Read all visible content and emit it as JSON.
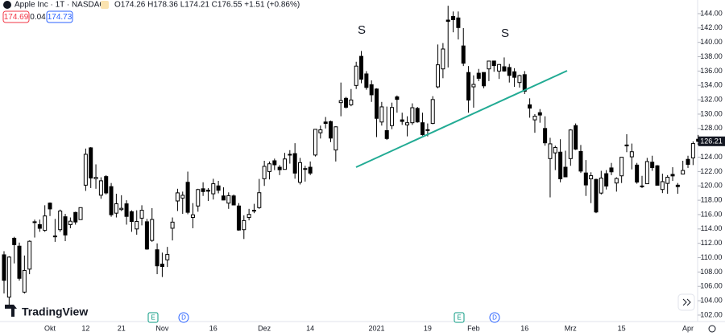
{
  "header": {
    "symbol": "Apple Inc · 1T · NASDAQ",
    "ohlc_text": "O174.26 H178.36 L174.21 C176.55 +1.51 (+0.86%)",
    "bid": "174.69",
    "spread": "0.04",
    "ask": "174.73"
  },
  "logo": "TradingView",
  "annotations": [
    "S",
    "S"
  ],
  "events": [
    "E",
    "D",
    "E",
    "D"
  ],
  "chart_data": {
    "type": "candlestick",
    "up_color": "#ffffff",
    "down_color": "#000000",
    "border_color": "#000000",
    "trend_color": "#22ab94",
    "categories": [
      null,
      null,
      null,
      null,
      null,
      null,
      null,
      null,
      null,
      "Okt",
      null,
      null,
      null,
      null,
      null,
      null,
      "12",
      null,
      null,
      null,
      null,
      null,
      null,
      "21",
      null,
      null,
      null,
      null,
      null,
      null,
      null,
      "Nov",
      null,
      null,
      null,
      null,
      null,
      null,
      null,
      null,
      null,
      "16",
      null,
      null,
      null,
      null,
      null,
      null,
      null,
      null,
      null,
      "Dez",
      null,
      null,
      null,
      null,
      null,
      null,
      null,
      null,
      "14",
      null,
      null,
      null,
      null,
      null,
      null,
      null,
      null,
      null,
      null,
      null,
      null,
      "2021",
      null,
      null,
      null,
      null,
      null,
      null,
      null,
      null,
      null,
      "19",
      null,
      null,
      null,
      null,
      null,
      null,
      null,
      null,
      "Feb",
      null,
      null,
      null,
      null,
      null,
      null,
      null,
      null,
      null,
      "16",
      null,
      null,
      null,
      null,
      null,
      null,
      null,
      null,
      "Mrz",
      null,
      null,
      null,
      null,
      null,
      null,
      null,
      null,
      null,
      "15",
      null,
      null,
      null,
      null,
      null,
      null,
      null,
      null,
      null,
      null,
      null,
      null,
      "Apr",
      null,
      null
    ],
    "ohlc": [
      [
        110.4,
        110.9,
        105.0,
        106.84
      ],
      [
        104.5,
        110.2,
        103.1,
        110.08
      ],
      [
        112.7,
        112.9,
        109.2,
        111.81
      ],
      [
        111.6,
        112.1,
        106.8,
        107.12
      ],
      [
        105.2,
        110.3,
        105.0,
        108.22
      ],
      [
        108.4,
        112.4,
        107.7,
        112.28
      ],
      [
        115.0,
        115.3,
        112.8,
        114.96
      ],
      [
        114.6,
        115.3,
        113.6,
        114.09
      ],
      [
        113.8,
        117.3,
        113.6,
        115.81
      ],
      [
        117.6,
        117.7,
        115.8,
        116.79
      ],
      [
        112.9,
        115.4,
        112.2,
        113.02
      ],
      [
        113.9,
        116.7,
        113.6,
        116.5
      ],
      [
        115.7,
        116.1,
        112.3,
        113.16
      ],
      [
        114.6,
        115.6,
        114.1,
        115.08
      ],
      [
        116.3,
        116.4,
        114.6,
        114.97
      ],
      [
        115.3,
        117.0,
        115.3,
        116.97
      ],
      [
        120.1,
        125.2,
        119.3,
        124.4
      ],
      [
        125.3,
        125.4,
        119.7,
        121.1
      ],
      [
        121.0,
        123.0,
        119.6,
        121.19
      ],
      [
        118.7,
        121.2,
        118.2,
        120.71
      ],
      [
        121.3,
        121.5,
        118.8,
        119.02
      ],
      [
        119.9,
        120.4,
        115.7,
        115.98
      ],
      [
        116.2,
        118.9,
        115.6,
        117.51
      ],
      [
        116.7,
        118.7,
        116.5,
        116.87
      ],
      [
        117.5,
        118.0,
        114.6,
        115.75
      ],
      [
        116.4,
        116.6,
        113.6,
        115.04
      ],
      [
        114.0,
        116.6,
        113.2,
        115.05
      ],
      [
        115.5,
        117.3,
        114.5,
        116.6
      ],
      [
        115.0,
        115.4,
        111.1,
        111.2
      ],
      [
        112.4,
        116.9,
        112.2,
        115.32
      ],
      [
        111.1,
        111.99,
        107.7,
        108.86
      ],
      [
        109.1,
        110.7,
        107.3,
        108.77
      ],
      [
        109.7,
        111.5,
        108.7,
        110.44
      ],
      [
        114.1,
        115.6,
        112.4,
        114.95
      ],
      [
        117.9,
        119.6,
        116.5,
        119.03
      ],
      [
        118.3,
        119.2,
        116.1,
        118.69
      ],
      [
        120.5,
        121.99,
        116.05,
        116.32
      ],
      [
        115.6,
        117.6,
        114.1,
        115.97
      ],
      [
        117.2,
        119.6,
        116.4,
        119.49
      ],
      [
        119.6,
        120.5,
        118.6,
        119.21
      ],
      [
        119.4,
        119.7,
        117.9,
        119.26
      ],
      [
        118.9,
        120.99,
        118.1,
        120.3
      ],
      [
        120.0,
        120.7,
        118.96,
        119.39
      ],
      [
        118.6,
        119.8,
        118.0,
        118.03
      ],
      [
        117.6,
        119.1,
        116.8,
        118.64
      ],
      [
        118.6,
        118.8,
        117.3,
        117.34
      ],
      [
        117.2,
        117.6,
        113.75,
        113.85
      ],
      [
        113.9,
        115.9,
        112.6,
        115.17
      ],
      [
        115.6,
        116.8,
        115.2,
        116.03
      ],
      [
        116.6,
        117.5,
        116.2,
        116.59
      ],
      [
        116.97,
        120.97,
        116.8,
        119.05
      ],
      [
        121.0,
        123.5,
        120.0,
        122.72
      ],
      [
        122.0,
        123.4,
        120.9,
        123.08
      ],
      [
        123.5,
        123.8,
        122.2,
        122.94
      ],
      [
        122.6,
        122.9,
        121.5,
        122.25
      ],
      [
        122.3,
        124.6,
        122.3,
        123.75
      ],
      [
        124.4,
        124.98,
        123.1,
        124.38
      ],
      [
        124.5,
        125.95,
        121.0,
        121.78
      ],
      [
        120.5,
        123.9,
        120.2,
        123.24
      ],
      [
        122.4,
        122.8,
        120.6,
        122.41
      ],
      [
        122.6,
        123.4,
        121.5,
        121.78
      ],
      [
        124.3,
        127.9,
        124.1,
        127.88
      ],
      [
        127.4,
        128.4,
        126.6,
        127.81
      ],
      [
        128.9,
        129.6,
        128.0,
        128.7
      ],
      [
        128.96,
        129.1,
        126.1,
        126.66
      ],
      [
        125.0,
        128.3,
        123.4,
        128.23
      ],
      [
        131.6,
        134.4,
        129.7,
        131.88
      ],
      [
        132.2,
        132.4,
        130.8,
        130.96
      ],
      [
        131.3,
        133.5,
        131.1,
        131.97
      ],
      [
        133.99,
        137.3,
        133.5,
        136.69
      ],
      [
        138.05,
        138.8,
        134.3,
        134.87
      ],
      [
        135.6,
        135.99,
        133.4,
        133.72
      ],
      [
        134.1,
        134.7,
        131.7,
        132.69
      ],
      [
        133.5,
        133.6,
        126.8,
        129.41
      ],
      [
        128.9,
        131.7,
        128.4,
        131.01
      ],
      [
        127.7,
        131.05,
        126.4,
        126.6
      ],
      [
        128.4,
        131.6,
        127.9,
        130.92
      ],
      [
        132.4,
        132.6,
        130.2,
        132.05
      ],
      [
        129.2,
        130.2,
        128.5,
        128.98
      ],
      [
        128.5,
        129.7,
        126.9,
        128.8
      ],
      [
        128.8,
        131.5,
        128.5,
        130.89
      ],
      [
        130.8,
        131.0,
        128.8,
        128.91
      ],
      [
        128.8,
        130.2,
        127.0,
        127.14
      ],
      [
        127.8,
        128.7,
        126.9,
        127.83
      ],
      [
        128.7,
        132.5,
        128.6,
        132.03
      ],
      [
        133.8,
        139.7,
        133.6,
        136.87
      ],
      [
        136.3,
        139.9,
        135.0,
        139.07
      ],
      [
        143.1,
        145.1,
        136.5,
        142.92
      ],
      [
        143.6,
        144.3,
        141.4,
        143.16
      ],
      [
        143.4,
        144.3,
        140.4,
        142.06
      ],
      [
        139.5,
        141.99,
        136.7,
        137.09
      ],
      [
        135.8,
        136.7,
        130.2,
        131.96
      ],
      [
        133.8,
        135.4,
        130.9,
        134.14
      ],
      [
        135.7,
        136.3,
        134.6,
        134.99
      ],
      [
        135.8,
        135.8,
        133.6,
        133.94
      ],
      [
        136.3,
        137.4,
        134.6,
        137.39
      ],
      [
        137.4,
        137.4,
        135.9,
        136.76
      ],
      [
        136.0,
        136.96,
        134.9,
        136.91
      ],
      [
        136.6,
        137.9,
        135.9,
        136.01
      ],
      [
        136.5,
        136.99,
        134.4,
        135.39
      ],
      [
        135.9,
        136.4,
        133.8,
        135.13
      ],
      [
        134.4,
        135.5,
        133.7,
        135.37
      ],
      [
        135.5,
        136.0,
        132.8,
        133.19
      ],
      [
        131.3,
        132.2,
        129.5,
        130.84
      ],
      [
        129.2,
        130.0,
        127.4,
        129.71
      ],
      [
        130.2,
        130.7,
        128.8,
        129.87
      ],
      [
        128.0,
        129.7,
        125.6,
        126.0
      ],
      [
        123.8,
        126.7,
        118.4,
        125.86
      ],
      [
        124.6,
        125.6,
        122.2,
        125.35
      ],
      [
        124.7,
        126.5,
        120.5,
        120.99
      ],
      [
        122.6,
        124.9,
        121.2,
        121.26
      ],
      [
        123.8,
        127.9,
        122.8,
        127.79
      ],
      [
        128.4,
        128.7,
        125.0,
        125.12
      ],
      [
        124.8,
        125.7,
        121.8,
        122.06
      ],
      [
        121.8,
        123.6,
        118.6,
        120.13
      ],
      [
        120.98,
        121.9,
        117.6,
        121.42
      ],
      [
        120.9,
        121.0,
        116.2,
        116.36
      ],
      [
        119.0,
        122.1,
        118.8,
        121.09
      ],
      [
        121.7,
        122.2,
        119.5,
        119.98
      ],
      [
        122.5,
        123.2,
        121.5,
        121.96
      ],
      [
        120.4,
        121.2,
        119.2,
        121.03
      ],
      [
        121.4,
        124.0,
        120.4,
        123.99
      ],
      [
        125.7,
        127.2,
        124.7,
        125.57
      ],
      [
        124.05,
        125.9,
        122.3,
        124.76
      ],
      [
        122.9,
        123.2,
        120.3,
        120.53
      ],
      [
        119.9,
        121.4,
        119.7,
        119.99
      ],
      [
        120.3,
        123.9,
        120.3,
        123.39
      ],
      [
        123.3,
        124.2,
        122.1,
        122.54
      ],
      [
        122.8,
        122.9,
        120.1,
        120.09
      ],
      [
        119.5,
        121.7,
        119.0,
        120.59
      ],
      [
        120.35,
        121.5,
        118.9,
        121.21
      ],
      [
        121.6,
        122.6,
        120.7,
        121.39
      ],
      [
        120.1,
        120.4,
        118.9,
        119.9
      ],
      [
        121.65,
        123.5,
        121.6,
        122.15
      ],
      [
        123.7,
        124.2,
        122.5,
        123.0
      ],
      [
        123.9,
        126.2,
        122.9,
        125.9
      ],
      [
        126.5,
        127.1,
        125.7,
        126.21
      ]
    ],
    "ylim": [
      101.1,
      145.9
    ],
    "yticks": [
      {
        "value": 102,
        "label": "102.00"
      },
      {
        "value": 104,
        "label": "104.00"
      },
      {
        "value": 106,
        "label": "106.00"
      },
      {
        "value": 108,
        "label": "108.00"
      },
      {
        "value": 110,
        "label": "110.00"
      },
      {
        "value": 112,
        "label": "112.00"
      },
      {
        "value": 114,
        "label": "114.00"
      },
      {
        "value": 116,
        "label": "116.00"
      },
      {
        "value": 118,
        "label": "118.00"
      },
      {
        "value": 120,
        "label": "120.00"
      },
      {
        "value": 122,
        "label": "122.00"
      },
      {
        "value": 124,
        "label": "124.00"
      },
      {
        "value": 126,
        "label": "126.00"
      },
      {
        "value": 128,
        "label": "128.00"
      },
      {
        "value": 130,
        "label": "130.00"
      },
      {
        "value": 132,
        "label": "132.00"
      },
      {
        "value": 134,
        "label": "134.00"
      },
      {
        "value": 136,
        "label": "136.00"
      },
      {
        "value": 138,
        "label": "138.00"
      },
      {
        "value": 140,
        "label": "140.00"
      },
      {
        "value": 142,
        "label": "142.00"
      },
      {
        "value": 144,
        "label": "144.00"
      }
    ]
  }
}
